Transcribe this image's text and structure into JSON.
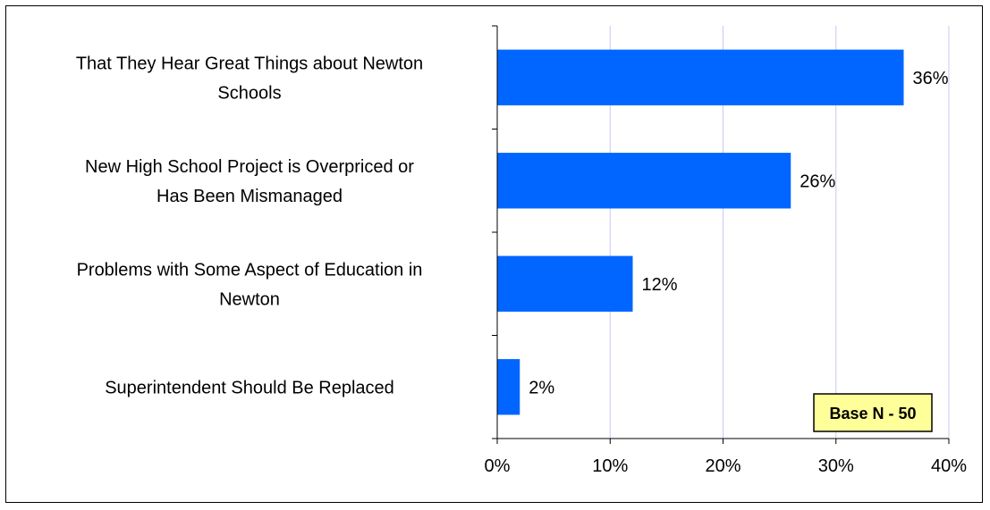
{
  "chart_data": {
    "type": "bar",
    "orientation": "horizontal",
    "categories": [
      [
        "That They Hear Great Things about Newton",
        "Schools"
      ],
      [
        "New High School Project is Overpriced or",
        "Has Been Mismanaged"
      ],
      [
        "Problems with Some Aspect of Education in",
        "Newton"
      ],
      [
        "Superintendent Should Be Replaced"
      ]
    ],
    "values": [
      36,
      26,
      12,
      2
    ],
    "value_labels": [
      "36%",
      "26%",
      "12%",
      "2%"
    ],
    "xlim": [
      0,
      40
    ],
    "x_ticks": [
      0,
      10,
      20,
      30,
      40
    ],
    "x_tick_labels": [
      "0%",
      "10%",
      "20%",
      "30%",
      "40%"
    ],
    "grid": true,
    "bar_color": "#0066ff",
    "grid_color": "#c8c8f0",
    "annotation": {
      "text": "Base N - 50",
      "fill": "#ffff99",
      "placement": "bottom-right"
    }
  }
}
